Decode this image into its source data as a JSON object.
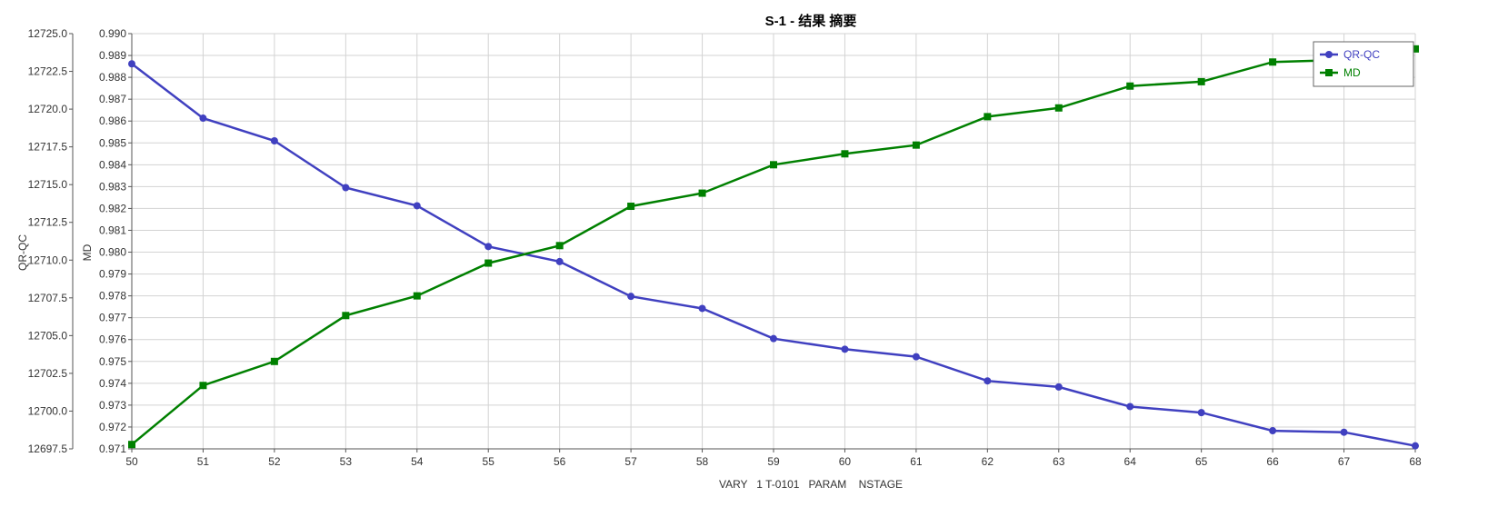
{
  "window": {
    "title": "S-1 - 结果 摘要"
  },
  "chart_data": {
    "type": "line",
    "title": "S-1 - 结果 摘要",
    "xlabel": "VARY   1 T-0101   PARAM    NSTAGE",
    "x": [
      50,
      51,
      52,
      53,
      54,
      55,
      56,
      57,
      58,
      59,
      60,
      61,
      62,
      63,
      64,
      65,
      66,
      67,
      68
    ],
    "xlim": [
      50,
      68
    ],
    "grid": true,
    "legend_position": "top-right",
    "axes": {
      "left_outer": {
        "label": "QR-QC",
        "ylim": [
          12697.5,
          12725.0
        ],
        "ticks": [
          "12697.5",
          "12700.0",
          "12702.5",
          "12705.0",
          "12707.5",
          "12710.0",
          "12712.5",
          "12715.0",
          "12717.5",
          "12720.0",
          "12722.5",
          "12725.0"
        ]
      },
      "left_inner": {
        "label": "MD",
        "ylim": [
          0.971,
          0.99
        ],
        "ticks": [
          "0.971",
          "0.972",
          "0.973",
          "0.974",
          "0.975",
          "0.976",
          "0.977",
          "0.978",
          "0.979",
          "0.980",
          "0.981",
          "0.982",
          "0.983",
          "0.984",
          "0.985",
          "0.986",
          "0.987",
          "0.988",
          "0.989",
          "0.990"
        ]
      }
    },
    "series": [
      {
        "name": "QR-QC",
        "axis": "left_outer",
        "color": "#4040c0",
        "marker": "circle",
        "values": [
          12723.0,
          12719.4,
          12717.9,
          12714.8,
          12713.6,
          12710.9,
          12709.9,
          12707.6,
          12706.8,
          12704.8,
          12704.1,
          12703.6,
          12702.0,
          12701.6,
          12700.3,
          12699.9,
          12698.7,
          12698.6,
          12697.7
        ]
      },
      {
        "name": "MD",
        "axis": "left_inner",
        "color": "#008000",
        "marker": "square",
        "values": [
          0.9712,
          0.9739,
          0.975,
          0.9771,
          0.978,
          0.9795,
          0.9803,
          0.9821,
          0.9827,
          0.984,
          0.9845,
          0.9849,
          0.9862,
          0.9866,
          0.9876,
          0.9878,
          0.9887,
          0.9888,
          0.9893
        ]
      }
    ]
  }
}
